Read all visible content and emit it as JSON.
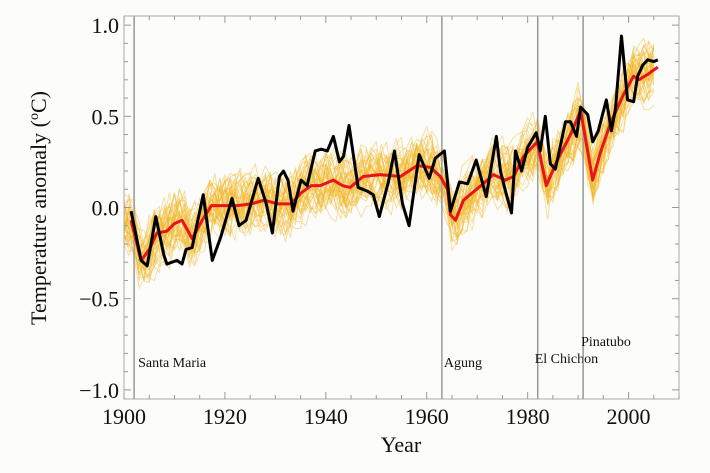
{
  "chart_data": {
    "type": "line",
    "title": "",
    "xlabel": "Year",
    "ylabel": "Temperature anomaly (",
    "ylabel_sup": "o",
    "ylabel_end": "C)",
    "xlim": [
      1900,
      2010
    ],
    "ylim": [
      -1.05,
      1.05
    ],
    "xticks": [
      1900,
      1920,
      1940,
      1960,
      1980,
      2000
    ],
    "xtick_labels": [
      "1900",
      "1920",
      "1940",
      "1960",
      "1980",
      "2000"
    ],
    "yticks": [
      -1.0,
      -0.5,
      0.0,
      0.5,
      1.0
    ],
    "ytick_labels": [
      "−1.0",
      "−0.5",
      "0.0",
      "0.5",
      "1.0"
    ],
    "grid": false,
    "legend": "none",
    "colors": {
      "observed": "#000000",
      "model_mean": "#e8141c",
      "ensemble": "#f2b623",
      "event_line": "#999999"
    },
    "ensemble_spread": 0.12,
    "events": [
      {
        "year": 1902,
        "label": "Santa Maria"
      },
      {
        "year": 1963,
        "label": "Agung"
      },
      {
        "year": 1982,
        "label": "El Chichon"
      },
      {
        "year": 1991,
        "label": "Pinatubo"
      }
    ],
    "series": [
      {
        "id": "observed",
        "x": [
          1901.4,
          1903.4,
          1904.6,
          1906.3,
          1907.9,
          1908.5,
          1910.5,
          1911.5,
          1912.3,
          1913.5,
          1915.7,
          1917.5,
          1919.2,
          1921.4,
          1922.8,
          1924.2,
          1926.6,
          1928.2,
          1929.4,
          1930.8,
          1931.6,
          1932.5,
          1933.5,
          1935.1,
          1936.3,
          1937.9,
          1939.1,
          1940.3,
          1941.5,
          1942.7,
          1943.5,
          1944.6,
          1946.4,
          1948.2,
          1949.4,
          1950.6,
          1952.4,
          1953.6,
          1955.2,
          1956.5,
          1958.5,
          1960.5,
          1961.7,
          1963.5,
          1964.7,
          1966.5,
          1968.1,
          1969.8,
          1971.8,
          1973.8,
          1974.6,
          1975.8,
          1976.8,
          1977.6,
          1978.8,
          1980.0,
          1981.7,
          1982.5,
          1983.5,
          1984.5,
          1985.5,
          1987.5,
          1988.5,
          1989.7,
          1990.5,
          1991.9,
          1992.9,
          1994.0,
          1995.6,
          1996.6,
          1997.4,
          1998.6,
          1999.8,
          2001.0,
          2001.8,
          2002.8,
          2003.8,
          2005.0,
          2005.8
        ],
        "y": [
          -0.02,
          -0.29,
          -0.32,
          -0.05,
          -0.26,
          -0.31,
          -0.29,
          -0.31,
          -0.23,
          -0.22,
          0.07,
          -0.29,
          -0.16,
          0.05,
          -0.1,
          -0.07,
          0.16,
          0.02,
          -0.14,
          0.17,
          0.2,
          0.15,
          -0.02,
          0.15,
          0.12,
          0.31,
          0.32,
          0.31,
          0.39,
          0.25,
          0.28,
          0.45,
          0.11,
          0.09,
          0.07,
          -0.05,
          0.14,
          0.31,
          0.02,
          -0.1,
          0.29,
          0.16,
          0.27,
          0.31,
          -0.02,
          0.14,
          0.13,
          0.26,
          0.06,
          0.39,
          0.2,
          0.07,
          -0.03,
          0.31,
          0.2,
          0.33,
          0.41,
          0.31,
          0.5,
          0.24,
          0.21,
          0.47,
          0.47,
          0.39,
          0.55,
          0.51,
          0.36,
          0.42,
          0.59,
          0.42,
          0.54,
          0.94,
          0.59,
          0.58,
          0.72,
          0.78,
          0.81,
          0.8,
          0.81
        ]
      },
      {
        "id": "model_mean",
        "x": [
          1901.4,
          1903.4,
          1905.0,
          1906.5,
          1908.5,
          1909.9,
          1911.5,
          1913.5,
          1915.5,
          1917.3,
          1919.8,
          1922.4,
          1925.2,
          1927.8,
          1930.4,
          1933.1,
          1935.1,
          1937.1,
          1938.9,
          1941.5,
          1943.3,
          1944.8,
          1947.4,
          1950.8,
          1954.8,
          1958.1,
          1960.7,
          1962.7,
          1964.1,
          1964.7,
          1965.7,
          1967.3,
          1969.0,
          1971.2,
          1973.2,
          1975.6,
          1977.2,
          1979.2,
          1981.9,
          1983.7,
          1985.9,
          1988.5,
          1990.5,
          1992.9,
          1994.4,
          1996.4,
          1999.0,
          2001.0,
          2002.0,
          2003.8,
          2005.8
        ],
        "y": [
          -0.07,
          -0.29,
          -0.23,
          -0.14,
          -0.13,
          -0.09,
          -0.07,
          -0.17,
          -0.07,
          0.01,
          0.01,
          0.01,
          0.02,
          0.04,
          0.02,
          0.02,
          0.08,
          0.12,
          0.12,
          0.15,
          0.12,
          0.11,
          0.17,
          0.18,
          0.17,
          0.23,
          0.22,
          0.17,
          0.1,
          -0.04,
          -0.07,
          0.04,
          0.08,
          0.13,
          0.18,
          0.15,
          0.17,
          0.28,
          0.36,
          0.12,
          0.26,
          0.4,
          0.53,
          0.15,
          0.3,
          0.46,
          0.62,
          0.72,
          0.7,
          0.73,
          0.77
        ]
      }
    ]
  }
}
